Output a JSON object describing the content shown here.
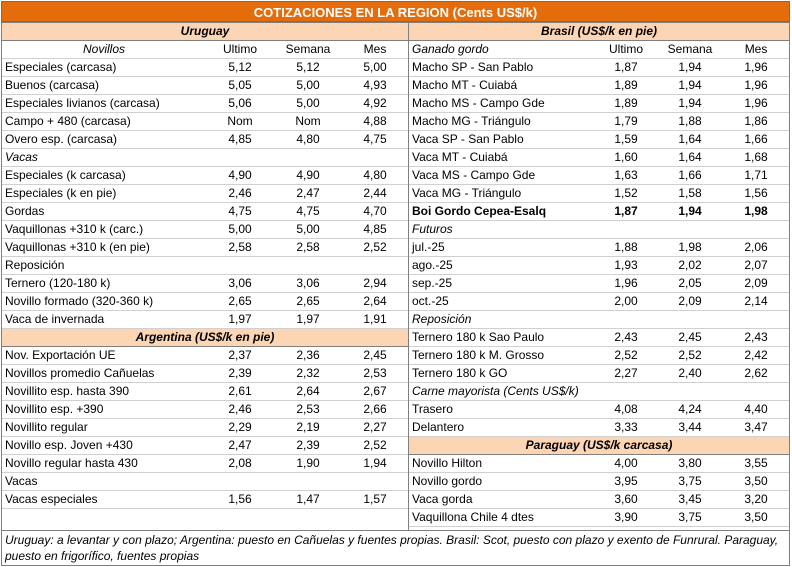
{
  "title": "COTIZACIONES EN LA REGION (Cents US$/k)",
  "columns": {
    "ultimo": "Ultimo",
    "semana": "Semana",
    "mes": "Mes"
  },
  "uruguay": {
    "header": "Uruguay",
    "novillos_label": "Novillos",
    "novillos": [
      {
        "label": "Especiales (carcasa)",
        "ultimo": "5,12",
        "semana": "5,12",
        "mes": "5,00"
      },
      {
        "label": "Buenos (carcasa)",
        "ultimo": "5,05",
        "semana": "5,00",
        "mes": "4,93"
      },
      {
        "label": "Especiales livianos (carcasa)",
        "ultimo": "5,06",
        "semana": "5,00",
        "mes": "4,92"
      },
      {
        "label": "Campo + 480 (carcasa)",
        "ultimo": "Nom",
        "semana": "Nom",
        "mes": "4,88"
      },
      {
        "label": "Overo esp. (carcasa)",
        "ultimo": "4,85",
        "semana": "4,80",
        "mes": "4,75"
      }
    ],
    "vacas_label": "Vacas",
    "vacas": [
      {
        "label": "Especiales (k carcasa)",
        "ultimo": "4,90",
        "semana": "4,90",
        "mes": "4,80"
      },
      {
        "label": "Especiales (k en pie)",
        "ultimo": "2,46",
        "semana": "2,47",
        "mes": "2,44"
      },
      {
        "label": "Gordas",
        "ultimo": "4,75",
        "semana": "4,75",
        "mes": "4,70"
      },
      {
        "label": "Vaquillonas +310 k (carc.)",
        "ultimo": "5,00",
        "semana": "5,00",
        "mes": "4,85"
      },
      {
        "label": "Vaquillonas +310 k (en pie)",
        "ultimo": "2,58",
        "semana": "2,58",
        "mes": "2,52"
      }
    ],
    "reposicion_label": "Reposición",
    "reposicion": [
      {
        "label": "Ternero (120-180 k)",
        "ultimo": "3,06",
        "semana": "3,06",
        "mes": "2,94"
      },
      {
        "label": "Novillo formado (320-360 k)",
        "ultimo": "2,65",
        "semana": "2,65",
        "mes": "2,64"
      },
      {
        "label": "Vaca de invernada",
        "ultimo": "1,97",
        "semana": "1,97",
        "mes": "1,91"
      }
    ]
  },
  "argentina": {
    "header": "Argentina (US$/k en pie)",
    "rows": [
      {
        "label": "Nov. Exportación UE",
        "ultimo": "2,37",
        "semana": "2,36",
        "mes": "2,45"
      },
      {
        "label": "Novillos promedio Cañuelas",
        "ultimo": "2,39",
        "semana": "2,32",
        "mes": "2,53"
      },
      {
        "label": "Novillito esp. hasta 390",
        "ultimo": "2,61",
        "semana": "2,64",
        "mes": "2,67"
      },
      {
        "label": "Novillito esp. +390",
        "ultimo": "2,46",
        "semana": "2,53",
        "mes": "2,66"
      },
      {
        "label": "Novillito regular",
        "ultimo": "2,29",
        "semana": "2,19",
        "mes": "2,27"
      },
      {
        "label": "Novillo esp. Joven +430",
        "ultimo": "2,47",
        "semana": "2,39",
        "mes": "2,52"
      },
      {
        "label": "Novillo regular hasta 430",
        "ultimo": "2,08",
        "semana": "1,90",
        "mes": "1,94"
      }
    ],
    "vacas_label": "Vacas",
    "vacas": [
      {
        "label": "Vacas especiales",
        "ultimo": "1,56",
        "semana": "1,47",
        "mes": "1,57"
      }
    ]
  },
  "brasil": {
    "header": "Brasil (US$/k en pie)",
    "ganado_label": "Ganado gordo",
    "ganado": [
      {
        "label": "Macho SP - San Pablo",
        "ultimo": "1,87",
        "semana": "1,94",
        "mes": "1,96"
      },
      {
        "label": "Macho MT - Cuiabá",
        "ultimo": "1,89",
        "semana": "1,94",
        "mes": "1,96"
      },
      {
        "label": "Macho MS - Campo Gde",
        "ultimo": "1,89",
        "semana": "1,94",
        "mes": "1,96"
      },
      {
        "label": "Macho MG - Triángulo",
        "ultimo": "1,79",
        "semana": "1,88",
        "mes": "1,86"
      },
      {
        "label": "Vaca SP - San Pablo",
        "ultimo": "1,59",
        "semana": "1,64",
        "mes": "1,66"
      },
      {
        "label": "Vaca MT - Cuiabá",
        "ultimo": "1,60",
        "semana": "1,64",
        "mes": "1,68"
      },
      {
        "label": "Vaca MS - Campo Gde",
        "ultimo": "1,63",
        "semana": "1,66",
        "mes": "1,71"
      },
      {
        "label": "Vaca MG - Triángulo",
        "ultimo": "1,52",
        "semana": "1,58",
        "mes": "1,56"
      }
    ],
    "boi": {
      "label": "Boi Gordo Cepea-Esalq",
      "ultimo": "1,87",
      "semana": "1,94",
      "mes": "1,98"
    },
    "futuros_label": "Futuros",
    "futuros": [
      {
        "label": "jul.-25",
        "ultimo": "1,88",
        "semana": "1,98",
        "mes": "2,06"
      },
      {
        "label": "ago.-25",
        "ultimo": "1,93",
        "semana": "2,02",
        "mes": "2,07"
      },
      {
        "label": "sep.-25",
        "ultimo": "1,96",
        "semana": "2,05",
        "mes": "2,09"
      },
      {
        "label": "oct.-25",
        "ultimo": "2,00",
        "semana": "2,09",
        "mes": "2,14"
      }
    ],
    "reposicion_label": "Reposición",
    "reposicion": [
      {
        "label": "Ternero 180 k Sao Paulo",
        "ultimo": "2,43",
        "semana": "2,45",
        "mes": "2,43"
      },
      {
        "label": "Ternero 180 k M. Grosso",
        "ultimo": "2,52",
        "semana": "2,52",
        "mes": "2,42"
      },
      {
        "label": "Ternero 180 k GO",
        "ultimo": "2,27",
        "semana": "2,40",
        "mes": "2,62"
      }
    ],
    "carne_label": "Carne mayorista (Cents US$/k)",
    "carne": [
      {
        "label": "Trasero",
        "ultimo": "4,08",
        "semana": "4,24",
        "mes": "4,40"
      },
      {
        "label": "Delantero",
        "ultimo": "3,33",
        "semana": "3,44",
        "mes": "3,47"
      }
    ]
  },
  "paraguay": {
    "header": "Paraguay (US$/k carcasa)",
    "rows": [
      {
        "label": "Novillo Hilton",
        "ultimo": "4,00",
        "semana": "3,80",
        "mes": "3,55"
      },
      {
        "label": "Novillo gordo",
        "ultimo": "3,95",
        "semana": "3,75",
        "mes": "3,50"
      },
      {
        "label": "Vaca gorda",
        "ultimo": "3,60",
        "semana": "3,45",
        "mes": "3,20"
      },
      {
        "label": "Vaquillona Chile 4 dtes",
        "ultimo": "3,90",
        "semana": "3,75",
        "mes": "3,50"
      }
    ]
  },
  "footer": "Uruguay: a levantar y con plazo; Argentina: puesto en Cañuelas y fuentes propias. Brasil: Scot, puesto con plazo y exento de Funrural. Paraguay, puesto en frigorífico, fuentes propias"
}
